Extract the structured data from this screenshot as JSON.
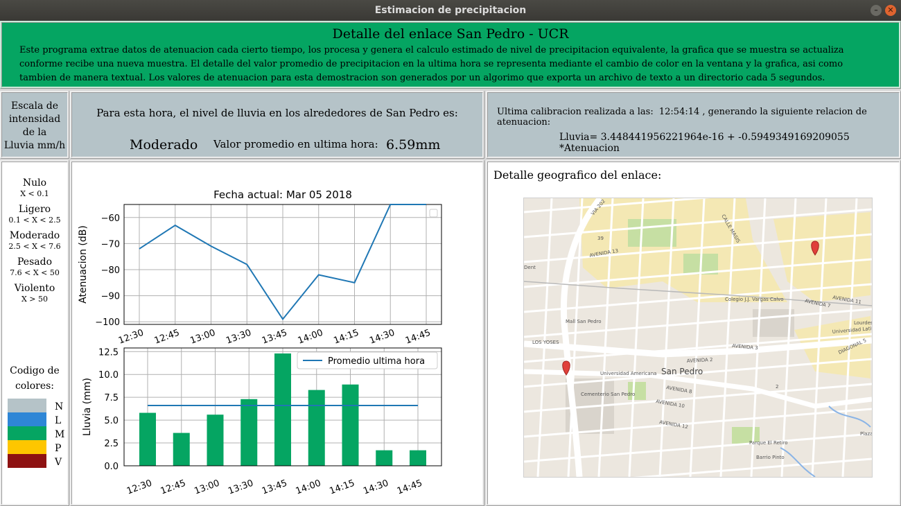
{
  "window": {
    "title": "Estimacion de precipitacion"
  },
  "header": {
    "title": "Detalle del enlace San Pedro - UCR",
    "description": "Este programa extrae datos de atenuacion cada cierto tiempo, los procesa y genera el calculo estimado de nivel de precipitacion equivalente, la grafica que se muestra se actualiza conforme recibe una nueva muestra. El detalle del valor promedio de precipitacion en la ultima hora se representa mediante el cambio de color en la ventana y la grafica, asi como tambien de manera textual. Los valores de atenuacion para esta demostracion son generados por un algorimo que exporta un archivo de texto a un directorio cada 5 segundos."
  },
  "scale": {
    "title_lines": [
      "Escala de",
      "intensidad",
      "de la",
      "Lluvia mm/h"
    ]
  },
  "current": {
    "prompt": "Para esta hora, el nivel de lluvia en los alrededores de San Pedro es:",
    "level": "Moderado",
    "avg_label": "Valor promedio en ultima hora:",
    "avg_value": "6.59",
    "avg_unit": "mm"
  },
  "calibration": {
    "label": "Ultima calibracion realizada a las:",
    "time": "12:54:14",
    "suffix": ", generando la siguiente relacion de atenuacion:",
    "formula": "Lluvia= 3.448441956221964e-16 + -0.5949349169209055 *Atenuacion"
  },
  "legend": {
    "levels": [
      {
        "name": "Nulo",
        "range": "X < 0.1"
      },
      {
        "name": "Ligero",
        "range": "0.1 < X < 2.5"
      },
      {
        "name": "Moderado",
        "range": "2.5 < X < 7.6"
      },
      {
        "name": "Pesado",
        "range": "7.6 < X < 50"
      },
      {
        "name": "Violento",
        "range": "X > 50"
      }
    ],
    "codes_title_1": "Codigo de",
    "codes_title_2": "colores:",
    "codes": [
      {
        "letter": "N",
        "color": "#b5c3c8"
      },
      {
        "letter": "L",
        "color": "#2e86d6"
      },
      {
        "letter": "M",
        "color": "#05a562"
      },
      {
        "letter": "P",
        "color": "#fec600"
      },
      {
        "letter": "V",
        "color": "#8e1212"
      }
    ]
  },
  "geo": {
    "title": "Detalle geografico del enlace:",
    "map_center_label": "San Pedro"
  },
  "chart_data": [
    {
      "type": "line",
      "title": "Fecha actual: Mar 05 2018",
      "categories": [
        "12:30",
        "12:45",
        "13:00",
        "13:30",
        "13:45",
        "14:00",
        "14:15",
        "14:30",
        "14:45"
      ],
      "values": [
        -72,
        -63,
        -71,
        -78,
        -99,
        -82,
        -85,
        -55,
        -55
      ],
      "ylabel": "Atenuacion (dB)",
      "ylim": [
        -101,
        -55
      ],
      "yticks": [
        -60,
        -70,
        -80,
        -90,
        -100
      ],
      "grid": true,
      "color": "#1f77b4"
    },
    {
      "type": "bar",
      "categories": [
        "12:30",
        "12:45",
        "13:00",
        "13:30",
        "13:45",
        "14:00",
        "14:15",
        "14:30",
        "14:45"
      ],
      "values": [
        5.8,
        3.6,
        5.6,
        7.3,
        12.3,
        8.3,
        8.9,
        1.7,
        1.7
      ],
      "ylabel": "Lluvia (mm)",
      "ylim": [
        0,
        12.9
      ],
      "yticks": [
        "0.0",
        "2.5",
        "5.0",
        "7.5",
        "10.0",
        "12.5"
      ],
      "grid": true,
      "bar_color": "#05a562",
      "series": [
        {
          "name": "Promedio ultima hora",
          "values": [
            6.6,
            6.6,
            6.6,
            6.6,
            6.6,
            6.6,
            6.6,
            6.6,
            6.6
          ]
        }
      ],
      "legend": "top-right",
      "line_color": "#1f77b4"
    }
  ],
  "map_labels": [
    "AVENIDA 13",
    "AVENIDA 11",
    "AVENIDA 7",
    "AVENIDA 3",
    "AVENIDA 2",
    "AVENIDA 8",
    "AVENIDA 10",
    "AVENIDA 12",
    "VIA 202",
    "CALLE MASIS",
    "Mall San Pedro",
    "Colegio J.J. Vargas Calvo",
    "Universidad Latina",
    "Universidad Americana",
    "Cementerio San Pedro",
    "Parque El Retiro",
    "Barrio Pinto",
    "LOS YOSES",
    "DIAGONAL 5",
    "Lourdes",
    "Plaza d",
    "Dent",
    "39",
    "2"
  ]
}
